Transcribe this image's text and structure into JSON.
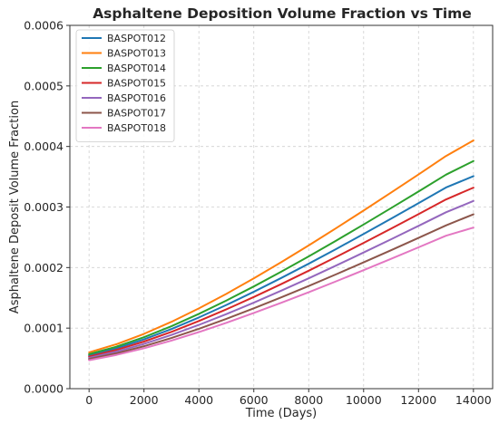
{
  "chart_data": {
    "type": "line",
    "title": "Asphaltene Deposition Volume Fraction vs Time",
    "xlabel": "Time (Days)",
    "ylabel": "Asphaltene Deposit Volume Fraction",
    "xlim": [
      -700,
      14700
    ],
    "ylim": [
      0,
      0.0006
    ],
    "xticks": [
      0,
      2000,
      4000,
      6000,
      8000,
      10000,
      12000,
      14000
    ],
    "xtick_labels": [
      "0",
      "2000",
      "4000",
      "6000",
      "8000",
      "10000",
      "12000",
      "14000"
    ],
    "yticks": [
      0,
      0.0001,
      0.0002,
      0.0003,
      0.0004,
      0.0005,
      0.0006
    ],
    "ytick_labels": [
      "0.0000",
      "0.0001",
      "0.0002",
      "0.0003",
      "0.0004",
      "0.0005",
      "0.0006"
    ],
    "grid": true,
    "legend_position": "top-left",
    "x": [
      0,
      1000,
      2000,
      3000,
      4000,
      5000,
      6000,
      7000,
      8000,
      9000,
      10000,
      11000,
      12000,
      13000,
      14000
    ],
    "series": [
      {
        "name": "BASPOT012",
        "color": "#1f77b4",
        "values": [
          5.5e-05,
          6.67e-05,
          8.14e-05,
          9.85e-05,
          0.0001176,
          0.0001382,
          0.00016,
          0.0001828,
          0.0002064,
          0.0002307,
          0.0002555,
          0.0002807,
          0.0003063,
          0.0003322,
          0.000351
        ]
      },
      {
        "name": "BASPOT013",
        "color": "#ff7f0e",
        "values": [
          6e-05,
          7.35e-05,
          9.05e-05,
          0.0001104,
          0.0001326,
          0.0001566,
          0.0001822,
          0.0002089,
          0.0002366,
          0.0002651,
          0.0002942,
          0.0003238,
          0.0003538,
          0.0003842,
          0.00041
        ]
      },
      {
        "name": "BASPOT014",
        "color": "#2ca02c",
        "values": [
          5.7e-05,
          6.94e-05,
          8.5e-05,
          0.0001032,
          0.0001235,
          0.0001455,
          0.0001688,
          0.0001932,
          0.0002185,
          0.0002445,
          0.0002711,
          0.0002982,
          0.0003256,
          0.0003534,
          0.000376
        ]
      },
      {
        "name": "BASPOT015",
        "color": "#d62728",
        "values": [
          5.3e-05,
          6.4e-05,
          7.78e-05,
          9.38e-05,
          0.0001117,
          0.000131,
          0.0001514,
          0.0001727,
          0.0001948,
          0.0002175,
          0.0002407,
          0.0002643,
          0.0002882,
          0.0003125,
          0.000332
        ]
      },
      {
        "name": "BASPOT016",
        "color": "#9467bd",
        "values": [
          5.1e-05,
          6.12e-05,
          7.39e-05,
          8.88e-05,
          0.0001053,
          0.0001232,
          0.0001421,
          0.0001619,
          0.0001823,
          0.0002034,
          0.0002249,
          0.0002467,
          0.0002689,
          0.0002913,
          0.00031
        ]
      },
      {
        "name": "BASPOT017",
        "color": "#8c564b",
        "values": [
          4.9e-05,
          5.84e-05,
          7.01e-05,
          8.37e-05,
          9.89e-05,
          0.0001153,
          0.0001327,
          0.0001508,
          0.0001696,
          0.0001889,
          0.0002086,
          0.0002286,
          0.000249,
          0.0002696,
          0.000288
        ]
      },
      {
        "name": "BASPOT018",
        "color": "#e377c2",
        "values": [
          4.7e-05,
          5.58e-05,
          6.67e-05,
          7.94e-05,
          9.35e-05,
          0.0001088,
          0.000125,
          0.0001419,
          0.0001593,
          0.0001773,
          0.0001957,
          0.0002144,
          0.0002334,
          0.0002526,
          0.000266
        ]
      }
    ]
  }
}
